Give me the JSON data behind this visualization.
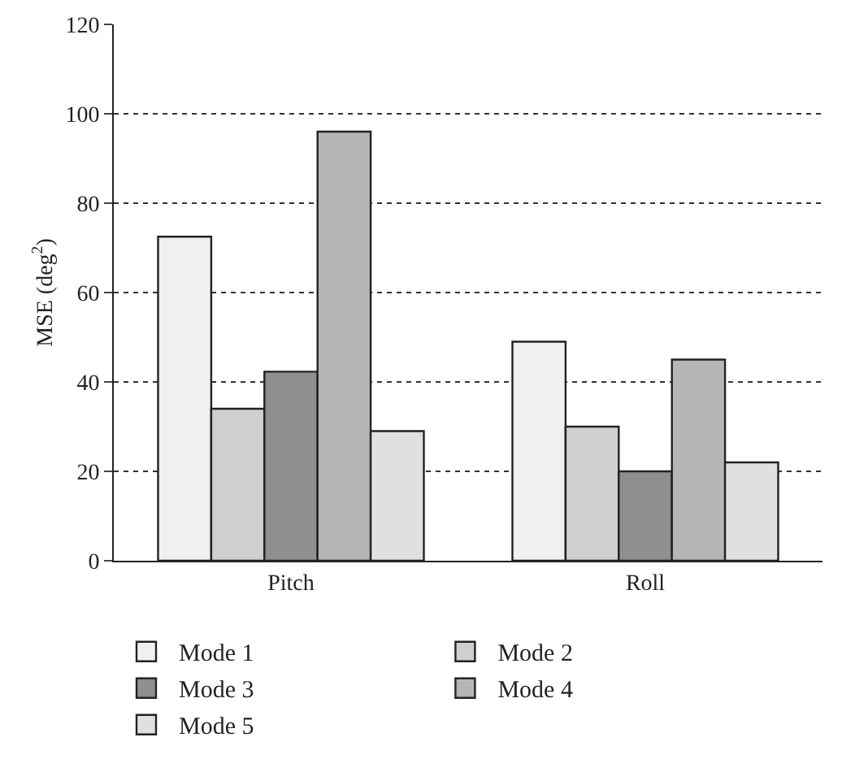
{
  "chart_data": {
    "type": "bar",
    "ylabel": "MSE (deg$^{2}$)",
    "categories": [
      "Pitch",
      "Roll"
    ],
    "series": [
      {
        "name": "Mode 1",
        "color": "#f0f0f0",
        "values": [
          72.5,
          49
        ]
      },
      {
        "name": "Mode 2",
        "color": "#cfcfcf",
        "values": [
          34,
          30
        ]
      },
      {
        "name": "Mode 3",
        "color": "#8f8f8f",
        "values": [
          42.3,
          20
        ]
      },
      {
        "name": "Mode 4",
        "color": "#b5b5b5",
        "values": [
          96,
          45
        ]
      },
      {
        "name": "Mode 5",
        "color": "#e0e0e0",
        "values": [
          29,
          22
        ]
      }
    ],
    "ylim": [
      0,
      120
    ],
    "yticks": [
      0,
      20,
      40,
      60,
      80,
      100,
      120
    ],
    "grid": "y",
    "legend": "bottom"
  }
}
